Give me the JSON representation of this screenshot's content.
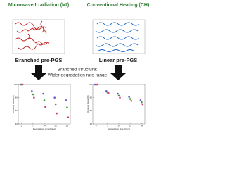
{
  "left": {
    "title": "Microwave Irradiation (MI)",
    "label": "Branched pre-PGS"
  },
  "right": {
    "title": "Conventional Heating (CH)",
    "label": "Linear pre-PGS"
  },
  "caption": [
    "Branched structure:",
    "Wider degradation rate range"
  ],
  "chart_data": [
    {
      "type": "scatter",
      "x": [
        0,
        7,
        14,
        21,
        28
      ],
      "xlim": [
        -2,
        30
      ],
      "ylim": [
        40,
        100
      ],
      "xticks": [
        0,
        7,
        14,
        21,
        28
      ],
      "yticks": [
        40,
        60,
        80,
        100
      ],
      "x_label": "Degradation time (Days)",
      "y_label": "Residual Mass (%)",
      "series": [
        {
          "color": "#6a5acd",
          "values": [
            100,
            90,
            86,
            80,
            76
          ]
        },
        {
          "color": "#3a9a3a",
          "values": [
            100,
            85,
            76,
            70,
            65
          ]
        },
        {
          "color": "#d04070",
          "values": [
            100,
            80,
            66,
            56,
            50
          ]
        }
      ]
    },
    {
      "type": "scatter",
      "x": [
        0,
        7,
        14,
        21,
        28
      ],
      "xlim": [
        -2,
        30
      ],
      "ylim": [
        40,
        100
      ],
      "xticks": [
        0,
        7,
        14,
        21,
        28
      ],
      "yticks": [
        40,
        60,
        80,
        100
      ],
      "x_label": "Degradation time (Days)",
      "y_label": "Residual Mass (%)",
      "series": [
        {
          "color": "#6a5acd",
          "values": [
            100,
            90,
            86,
            81,
            76
          ]
        },
        {
          "color": "#3a9a3a",
          "values": [
            100,
            88,
            83,
            78,
            73
          ]
        },
        {
          "color": "#d04070",
          "values": [
            100,
            87,
            80,
            75,
            70
          ]
        }
      ]
    }
  ]
}
